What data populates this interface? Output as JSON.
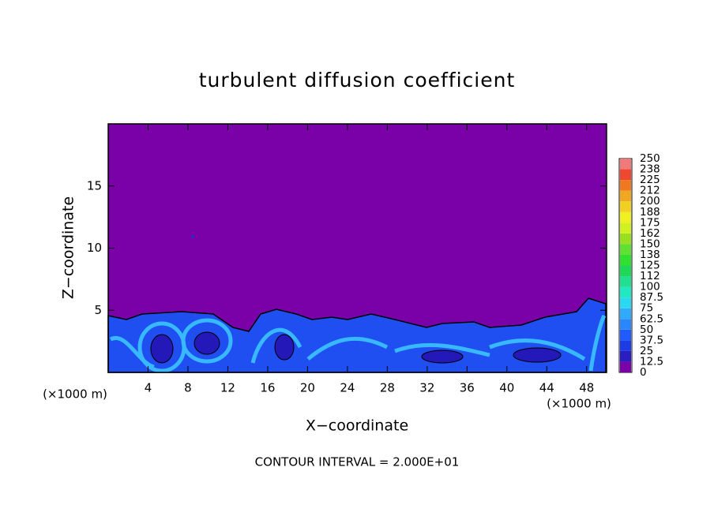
{
  "chart_data": {
    "type": "contour",
    "title": "turbulent diffusion coefficient",
    "x_label": "X−coordinate",
    "y_label": "Z−coordinate",
    "x_unit": "(×1000 m)",
    "y_unit": "(×1000 m)",
    "annotation": "CONTOUR INTERVAL = 2.000E+01",
    "xlim": [
      0,
      50
    ],
    "ylim": [
      0,
      20
    ],
    "xticks": [
      4,
      8,
      12,
      16,
      20,
      24,
      28,
      32,
      36,
      40,
      44,
      48
    ],
    "yticks": [
      5,
      10,
      15
    ],
    "colorbar": {
      "levels": [
        0,
        12.5,
        25,
        37.5,
        50,
        62.5,
        75,
        87.5,
        100,
        112,
        125,
        138,
        150,
        162,
        175,
        188,
        200,
        212,
        225,
        238,
        250
      ],
      "colors": [
        "#7a00a8",
        "#2a1ec0",
        "#1e3ce6",
        "#1f5cff",
        "#2a86ff",
        "#30aaff",
        "#2ad8f0",
        "#20e8c0",
        "#20e090",
        "#20d858",
        "#30e030",
        "#60e030",
        "#98e020",
        "#d0f020",
        "#f0f020",
        "#f0d020",
        "#f0a820",
        "#f07820",
        "#f04830",
        "#f07a7a"
      ]
    }
  }
}
